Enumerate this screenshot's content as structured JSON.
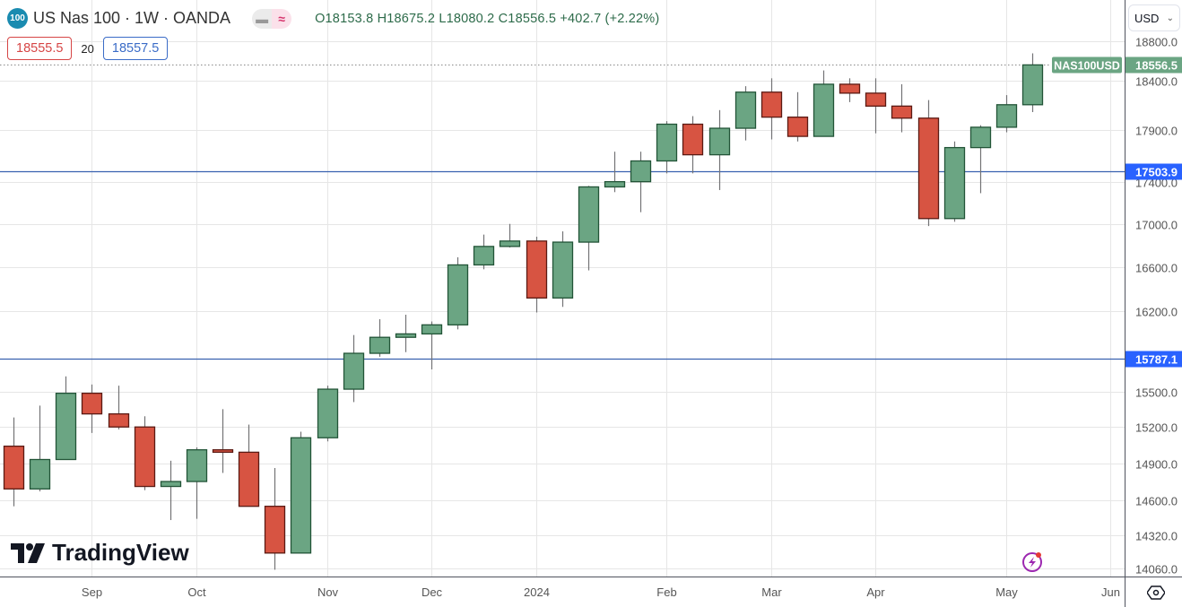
{
  "header": {
    "symbol_badge": "100",
    "title": "US Nas 100 · 1W · OANDA",
    "ohlc": {
      "open": "O18153.8",
      "high": "H18675.2",
      "low": "L18080.2",
      "close": "C18556.5",
      "change": "+402.7 (+2.22%)"
    },
    "sell_price": "18555.5",
    "spread": "20",
    "buy_price": "18557.5",
    "currency": "USD"
  },
  "branding": {
    "logo_text": "TradingView"
  },
  "colors": {
    "up": "#6ba583",
    "up_border": "#225437",
    "down": "#d75442",
    "down_border": "#5b1a13",
    "wick": "#737375",
    "hline": "#2962ff",
    "last_price": "#6ba583"
  },
  "icons": {
    "currency_dropdown": "chevron-down-icon",
    "alert": "lightning-icon",
    "settings": "hexagon-settings-icon"
  },
  "chart_data": {
    "type": "candlestick",
    "symbol_label": "NAS100USD",
    "interval": "1W",
    "y_scale": "log",
    "ylim": [
      14000,
      18850
    ],
    "grid": true,
    "y_ticks": [
      18800.0,
      18400.0,
      17900.0,
      17400.0,
      17000.0,
      16600.0,
      16200.0,
      15500.0,
      15200.0,
      14900.0,
      14600.0,
      14320.0,
      14060.0
    ],
    "x_ticks": [
      {
        "date": "2023-09-04",
        "label": "Sep"
      },
      {
        "date": "2023-10-02",
        "label": "Oct"
      },
      {
        "date": "2023-11-06",
        "label": "Nov"
      },
      {
        "date": "2023-12-04",
        "label": "Dec"
      },
      {
        "date": "2024-01-01",
        "label": "2024"
      },
      {
        "date": "2024-02-05",
        "label": "Feb"
      },
      {
        "date": "2024-03-04",
        "label": "Mar"
      },
      {
        "date": "2024-04-01",
        "label": "Apr"
      },
      {
        "date": "2024-05-06",
        "label": "May"
      },
      {
        "date": "2024-06-03",
        "label": "Jun"
      }
    ],
    "horizontal_lines": [
      17503.9,
      15787.1
    ],
    "last_price": 18556.5,
    "first_date": "2023-08-14",
    "candles": [
      {
        "o": 15040,
        "h": 15280,
        "l": 14550,
        "c": 14690
      },
      {
        "o": 14690,
        "h": 15380,
        "l": 14670,
        "c": 14930
      },
      {
        "o": 14930,
        "h": 15630,
        "l": 14930,
        "c": 15485
      },
      {
        "o": 15485,
        "h": 15560,
        "l": 15150,
        "c": 15310
      },
      {
        "o": 15310,
        "h": 15550,
        "l": 15180,
        "c": 15200
      },
      {
        "o": 15200,
        "h": 15290,
        "l": 14680,
        "c": 14710
      },
      {
        "o": 14710,
        "h": 14920,
        "l": 14440,
        "c": 14750
      },
      {
        "o": 14750,
        "h": 15030,
        "l": 14450,
        "c": 15010
      },
      {
        "o": 15010,
        "h": 15350,
        "l": 14820,
        "c": 14990
      },
      {
        "o": 14990,
        "h": 15220,
        "l": 14550,
        "c": 14550
      },
      {
        "o": 14550,
        "h": 14860,
        "l": 14050,
        "c": 14180
      },
      {
        "o": 14180,
        "h": 15160,
        "l": 14180,
        "c": 15110
      },
      {
        "o": 15110,
        "h": 15550,
        "l": 15080,
        "c": 15520
      },
      {
        "o": 15520,
        "h": 15990,
        "l": 15410,
        "c": 15830
      },
      {
        "o": 15830,
        "h": 16130,
        "l": 15800,
        "c": 15970
      },
      {
        "o": 15970,
        "h": 16170,
        "l": 15840,
        "c": 16000
      },
      {
        "o": 16000,
        "h": 16110,
        "l": 15690,
        "c": 16080
      },
      {
        "o": 16080,
        "h": 16690,
        "l": 16040,
        "c": 16620
      },
      {
        "o": 16620,
        "h": 16900,
        "l": 16580,
        "c": 16790
      },
      {
        "o": 16790,
        "h": 17000,
        "l": 16780,
        "c": 16840
      },
      {
        "o": 16840,
        "h": 16880,
        "l": 16190,
        "c": 16320
      },
      {
        "o": 16320,
        "h": 16930,
        "l": 16240,
        "c": 16830
      },
      {
        "o": 16830,
        "h": 17360,
        "l": 16570,
        "c": 17350
      },
      {
        "o": 17350,
        "h": 17690,
        "l": 17300,
        "c": 17400
      },
      {
        "o": 17400,
        "h": 17690,
        "l": 17110,
        "c": 17600
      },
      {
        "o": 17600,
        "h": 17990,
        "l": 17480,
        "c": 17960
      },
      {
        "o": 17960,
        "h": 18040,
        "l": 17480,
        "c": 17660
      },
      {
        "o": 17660,
        "h": 18100,
        "l": 17320,
        "c": 17920
      },
      {
        "o": 17920,
        "h": 18340,
        "l": 17800,
        "c": 18280
      },
      {
        "o": 18280,
        "h": 18420,
        "l": 17810,
        "c": 18030
      },
      {
        "o": 18030,
        "h": 18280,
        "l": 17790,
        "c": 17840
      },
      {
        "o": 17840,
        "h": 18500,
        "l": 17840,
        "c": 18360
      },
      {
        "o": 18360,
        "h": 18420,
        "l": 18180,
        "c": 18270
      },
      {
        "o": 18270,
        "h": 18420,
        "l": 17870,
        "c": 18140
      },
      {
        "o": 18140,
        "h": 18360,
        "l": 17880,
        "c": 18020
      },
      {
        "o": 18020,
        "h": 18200,
        "l": 16980,
        "c": 17050
      },
      {
        "o": 17050,
        "h": 17790,
        "l": 17020,
        "c": 17730
      },
      {
        "o": 17730,
        "h": 17950,
        "l": 17290,
        "c": 17930
      },
      {
        "o": 17930,
        "h": 18250,
        "l": 17880,
        "c": 18153.8
      },
      {
        "o": 18153.8,
        "h": 18675.2,
        "l": 18080.2,
        "c": 18556.5
      }
    ]
  }
}
